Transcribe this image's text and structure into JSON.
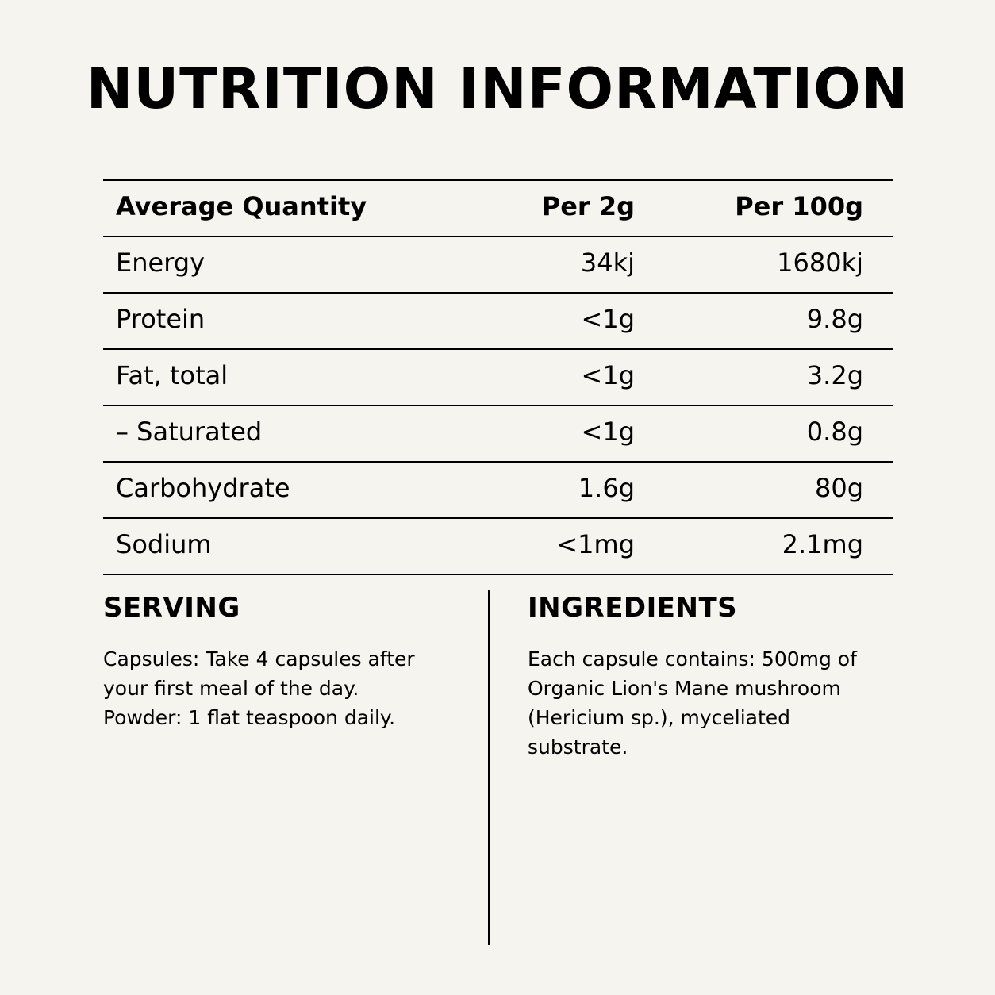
{
  "title": "NUTRITION INFORMATION",
  "table": {
    "headers": {
      "name": "Average Quantity",
      "per_2g": "Per 2g",
      "per_100g": "Per 100g"
    },
    "rows": [
      {
        "name": "Energy",
        "per_2g": "34kj",
        "per_100g": "1680kj"
      },
      {
        "name": "Protein",
        "per_2g": "<1g",
        "per_100g": "9.8g"
      },
      {
        "name": "Fat, total",
        "per_2g": "<1g",
        "per_100g": "3.2g"
      },
      {
        "name": "– Saturated",
        "per_2g": "<1g",
        "per_100g": "0.8g"
      },
      {
        "name": "Carbohydrate",
        "per_2g": "1.6g",
        "per_100g": "80g"
      },
      {
        "name": "Sodium",
        "per_2g": "<1mg",
        "per_100g": "2.1mg"
      }
    ]
  },
  "serving": {
    "heading": "SERVING",
    "lines": [
      "Capsules: Take 4 capsules after",
      "your first meal of the day.",
      "Powder: 1 flat teaspoon daily."
    ]
  },
  "ingredients": {
    "heading": "INGREDIENTS",
    "lines": [
      "Each capsule contains: 500mg of",
      "Organic Lion's Mane mushroom",
      "(Hericium sp.), myceliated",
      "substrate."
    ]
  }
}
